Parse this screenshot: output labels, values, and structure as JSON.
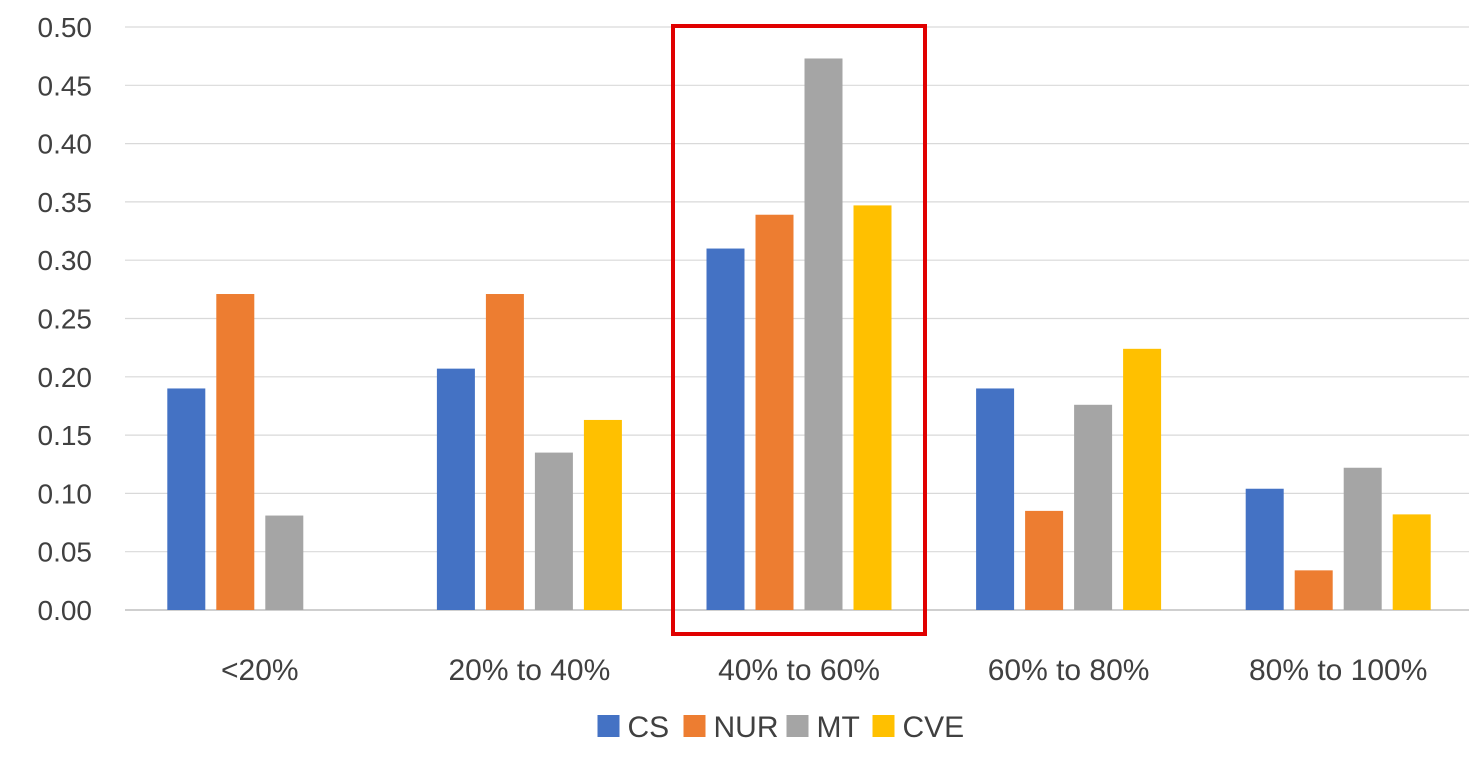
{
  "chart_data": {
    "type": "bar",
    "title": "",
    "xlabel": "",
    "ylabel": "",
    "categories": [
      "<20%",
      "20% to 40%",
      "40% to 60%",
      "60% to 80%",
      "80% to 100%"
    ],
    "series": [
      {
        "name": "CS",
        "color": "#4472C4",
        "values": [
          0.19,
          0.207,
          0.31,
          0.19,
          0.104
        ]
      },
      {
        "name": "NUR",
        "color": "#ED7D31",
        "values": [
          0.271,
          0.271,
          0.339,
          0.085,
          0.034
        ]
      },
      {
        "name": "MT",
        "color": "#A5A5A5",
        "values": [
          0.081,
          0.135,
          0.473,
          0.176,
          0.122
        ]
      },
      {
        "name": "CVE",
        "color": "#FFC000",
        "values": [
          0.0,
          0.163,
          0.347,
          0.224,
          0.082
        ]
      }
    ],
    "ylim": [
      0,
      0.5
    ],
    "yticks": [
      "0.00",
      "0.05",
      "0.10",
      "0.15",
      "0.20",
      "0.25",
      "0.30",
      "0.35",
      "0.40",
      "0.45",
      "0.50"
    ],
    "grid": true,
    "legend_position": "bottom",
    "highlight": {
      "category": "40% to 60%",
      "color": "#E00000"
    }
  }
}
